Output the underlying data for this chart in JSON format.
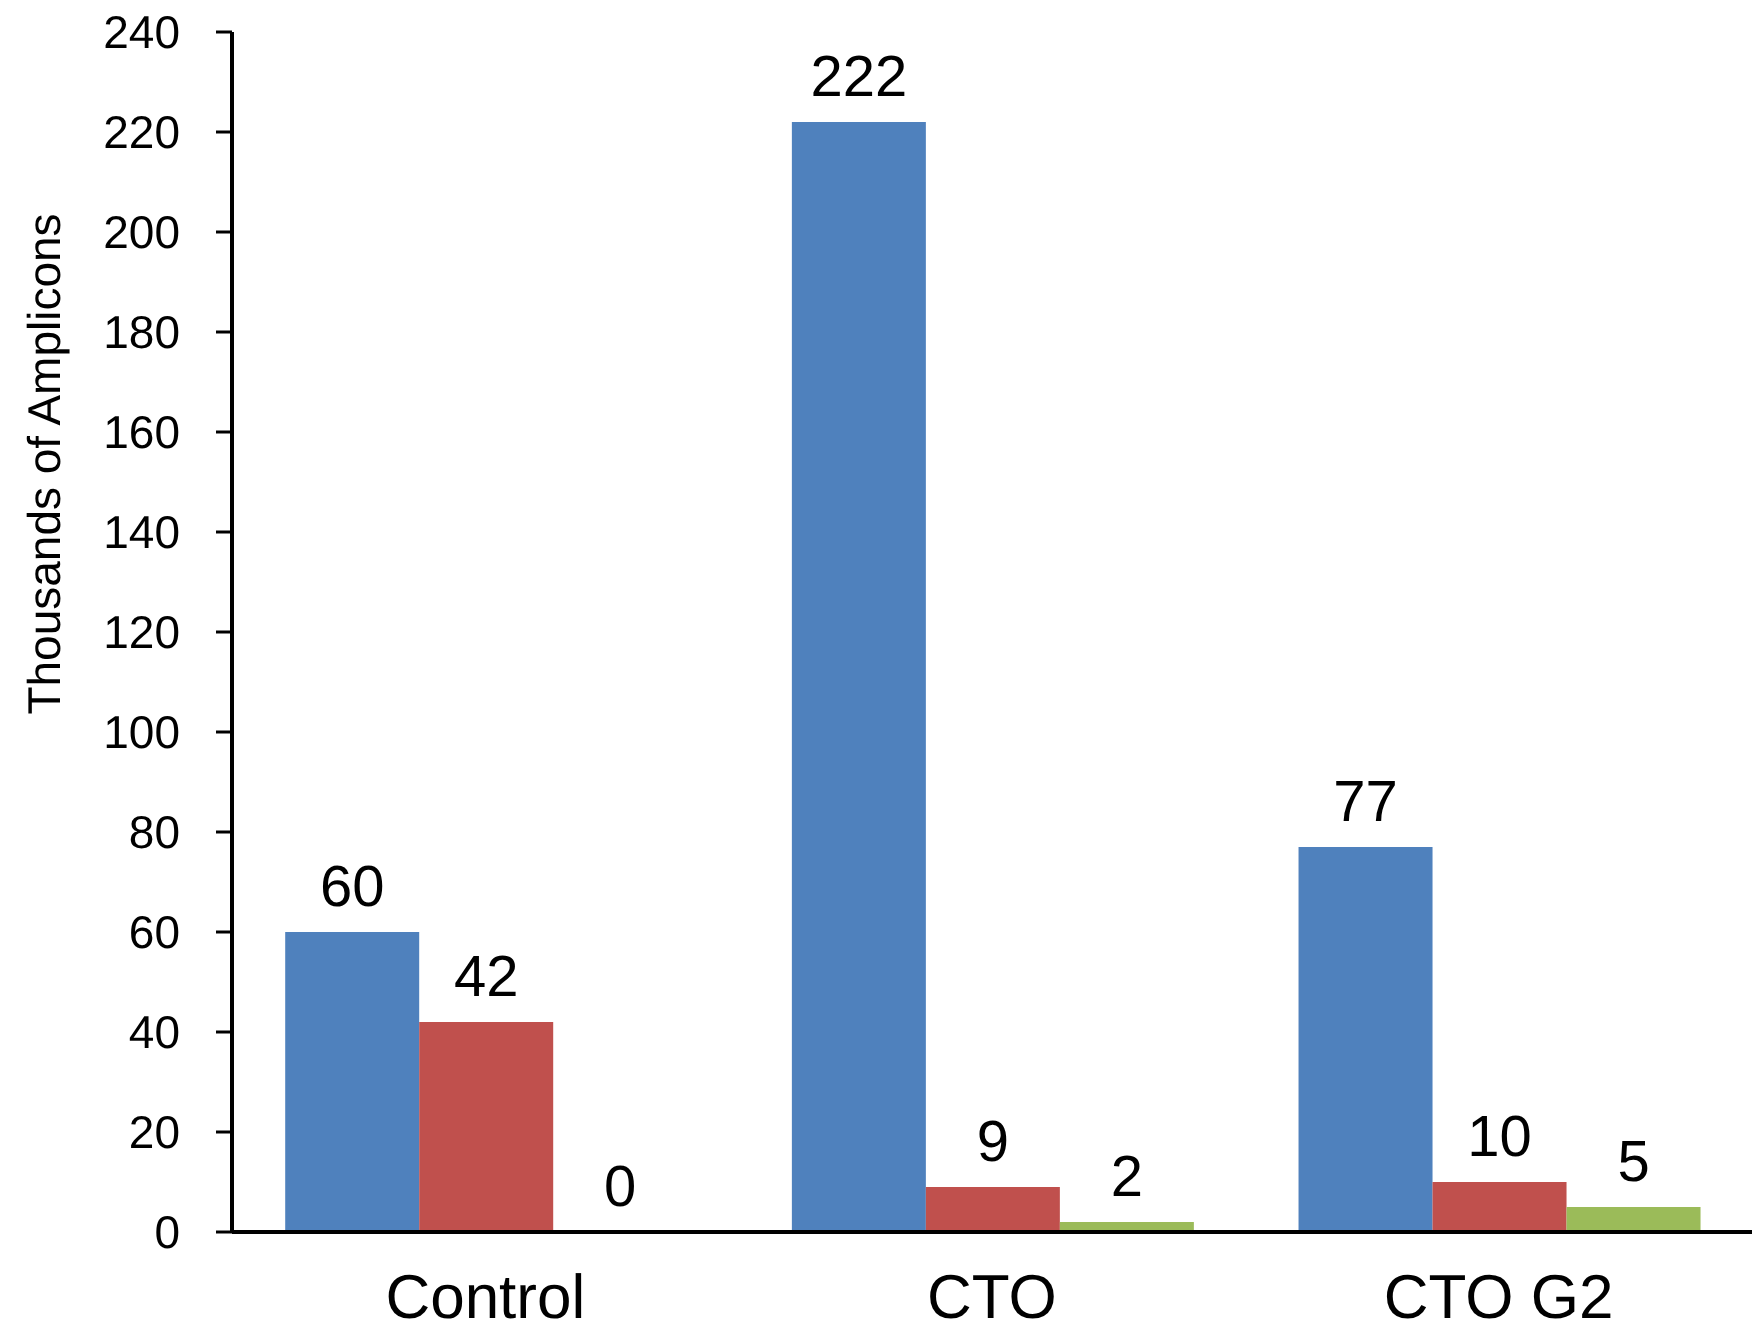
{
  "chart_data": {
    "type": "bar",
    "ylabel": "Thousands of Amplicons",
    "categories": [
      "Control",
      "CTO",
      "CTO G2"
    ],
    "series": [
      {
        "color": "#4f81bd",
        "values": [
          60,
          222,
          77
        ]
      },
      {
        "color": "#c0504d",
        "values": [
          42,
          9,
          10
        ]
      },
      {
        "color": "#9bbb59",
        "values": [
          0,
          2,
          5
        ]
      }
    ],
    "ylim": [
      0,
      240
    ],
    "yticks": [
      0,
      20,
      40,
      60,
      80,
      100,
      120,
      140,
      160,
      180,
      200,
      220,
      240
    ],
    "data_labels": true
  }
}
